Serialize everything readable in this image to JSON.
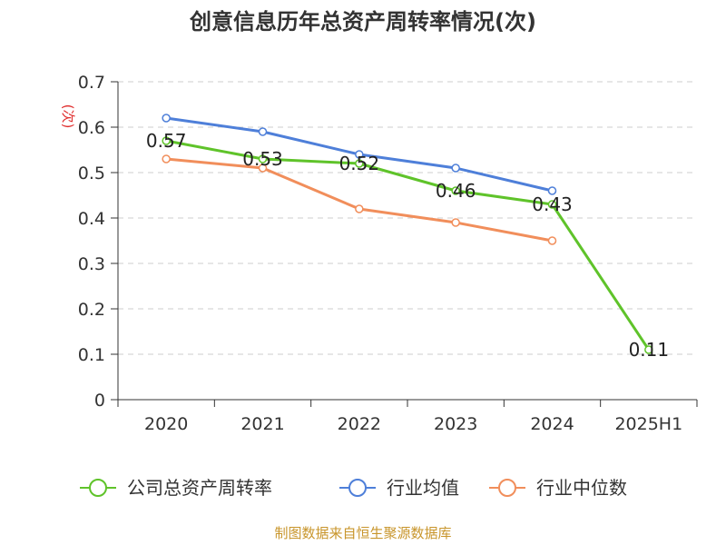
{
  "chart_data": {
    "type": "line",
    "title": "创意信息历年总资产周转率情况(次)",
    "ylabel": "(次)",
    "categories": [
      "2020",
      "2021",
      "2022",
      "2023",
      "2024",
      "2025H1"
    ],
    "ylim": [
      0,
      0.7
    ],
    "yticks": [
      "0",
      "0.1",
      "0.2",
      "0.3",
      "0.4",
      "0.5",
      "0.6",
      "0.7"
    ],
    "grid": true,
    "legend_position": "bottom",
    "series": [
      {
        "name": "公司总资产周转率",
        "color": "#5fc32a",
        "values": [
          0.57,
          0.53,
          0.52,
          0.46,
          0.43,
          0.11
        ],
        "labels": [
          "0.57",
          "0.53",
          "0.52",
          "0.46",
          "0.43",
          "0.11"
        ]
      },
      {
        "name": "行业均值",
        "color": "#4e7fd9",
        "values": [
          0.62,
          0.59,
          0.54,
          0.51,
          0.46,
          null
        ]
      },
      {
        "name": "行业中位数",
        "color": "#f18e5b",
        "values": [
          0.53,
          0.51,
          0.42,
          0.39,
          0.35,
          null
        ]
      }
    ]
  },
  "source": "制图数据来自恒生聚源数据库"
}
